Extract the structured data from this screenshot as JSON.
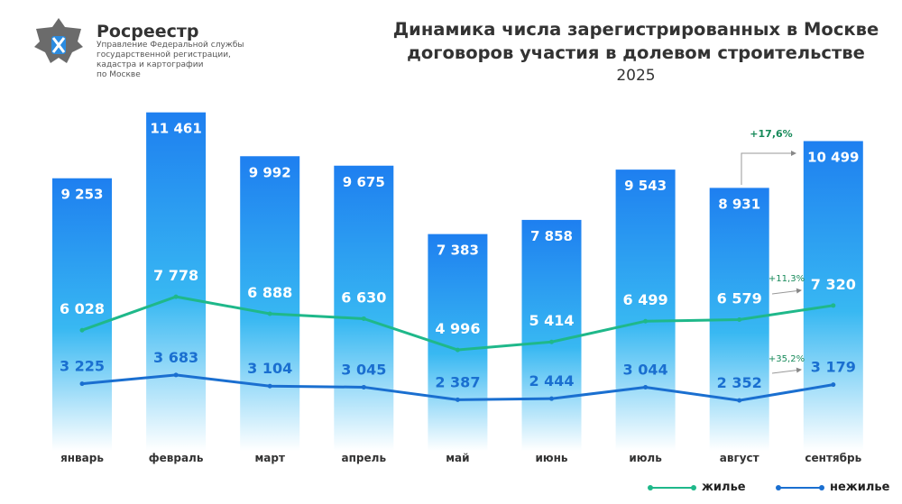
{
  "header": {
    "brand": "Росреестр",
    "subtitle": [
      "Управление Федеральной службы",
      "государственной регистрации,",
      "кадастра и картографии",
      "по Москве"
    ]
  },
  "chart_data": {
    "type": "bar",
    "title": "Динамика числа зарегистрированных в Москве договоров участия в долевом строительстве",
    "title_lines": [
      "Динамика числа зарегистрированных в Москве",
      "договоров участия в долевом строительстве"
    ],
    "subtitle": "2025",
    "categories": [
      "январь",
      "февраль",
      "март",
      "апрель",
      "май",
      "июнь",
      "июль",
      "август",
      "сентябрь"
    ],
    "values": [
      9253,
      11461,
      9992,
      9675,
      7383,
      7858,
      9543,
      8931,
      10499
    ],
    "value_labels": [
      "9 253",
      "11 461",
      "9 992",
      "9 675",
      "7 383",
      "7 858",
      "9 543",
      "8 931",
      "10 499"
    ],
    "series": [
      {
        "name": "жилье",
        "type": "line",
        "color": "#1fb88a",
        "values": [
          6028,
          7778,
          6888,
          6630,
          4996,
          5414,
          6499,
          6579,
          7320
        ],
        "labels": [
          "6 028",
          "7 778",
          "6 888",
          "6 630",
          "4 996",
          "5 414",
          "6 499",
          "6 579",
          "7 320"
        ]
      },
      {
        "name": "нежилье",
        "type": "line",
        "color": "#1a6fd0",
        "values": [
          3225,
          3683,
          3104,
          3045,
          2387,
          2444,
          3044,
          2352,
          3179
        ],
        "labels": [
          "3 225",
          "3 683",
          "3 104",
          "3 045",
          "2 387",
          "2 444",
          "3 044",
          "2 352",
          "3 179"
        ]
      }
    ],
    "annotations": [
      "+17,6%",
      "+11,3%",
      "+35,2%"
    ],
    "bar_color_top": "#1e7ff0",
    "bar_color_bottom": "#ffffff",
    "legend_position": "bottom-right",
    "grid": false
  }
}
